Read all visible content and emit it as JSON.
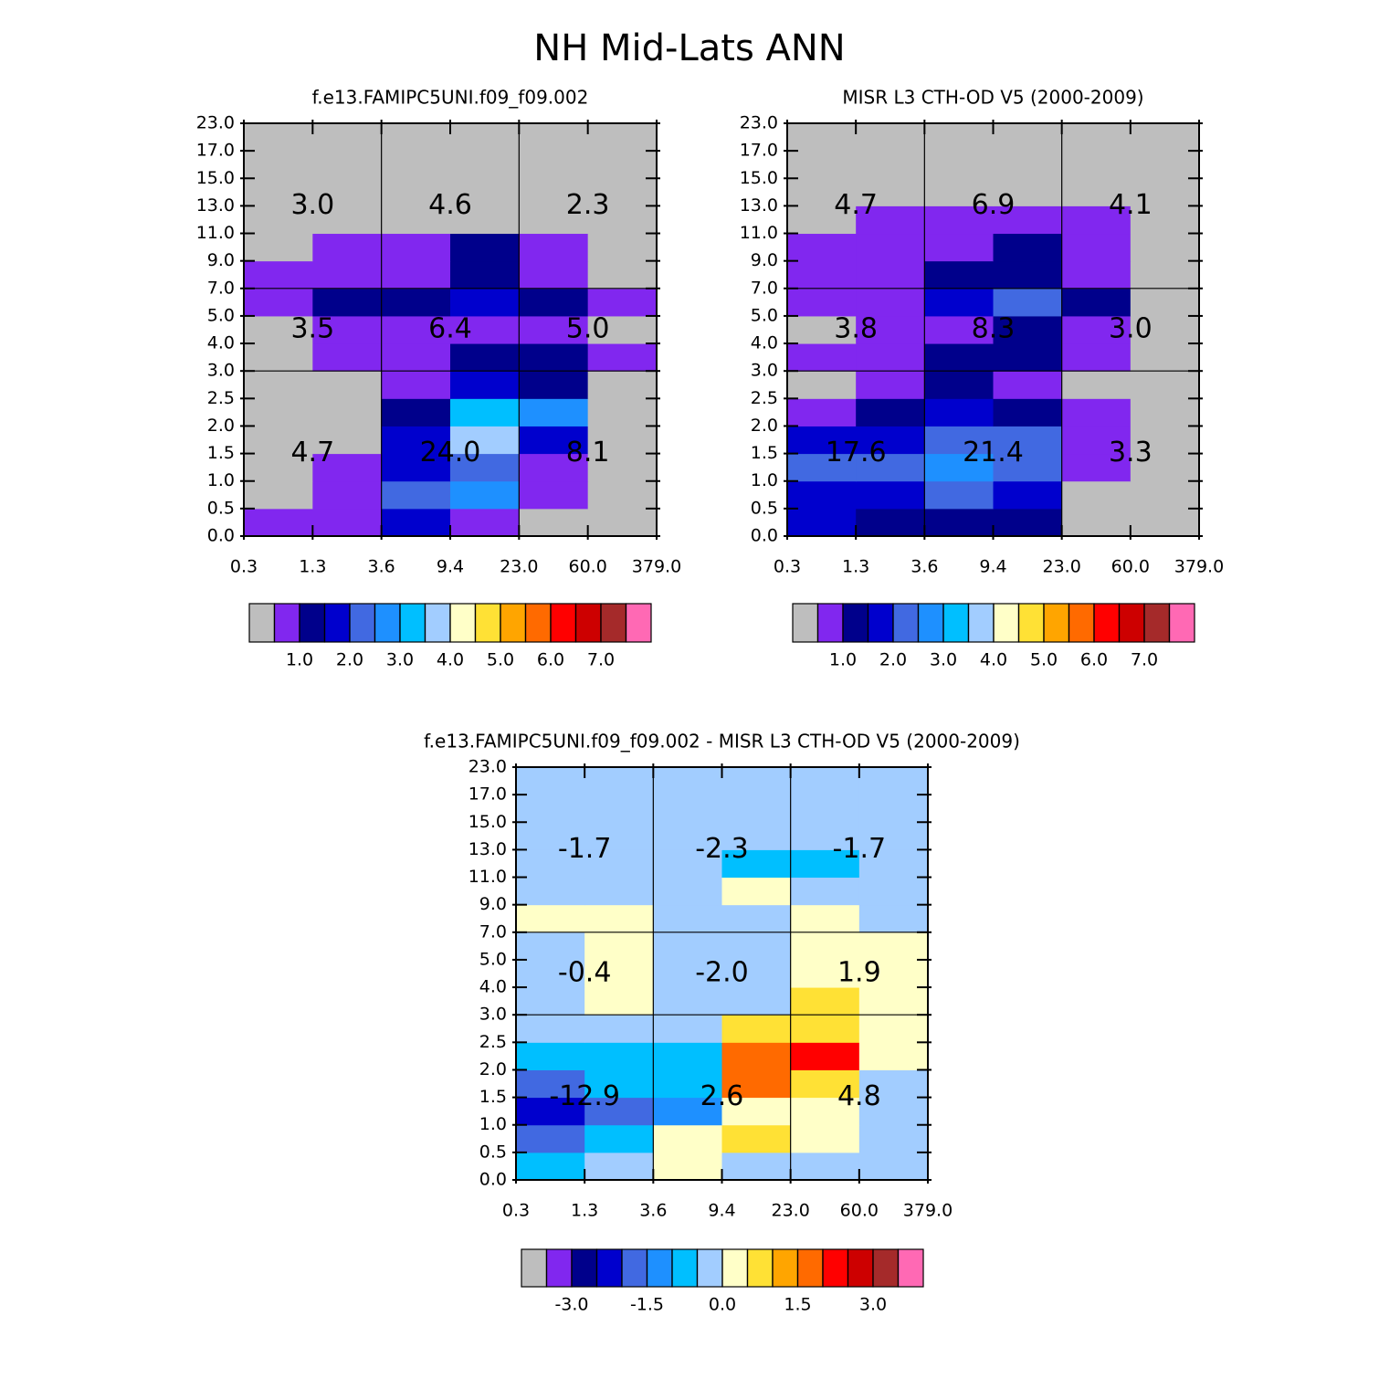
{
  "title": "NH Mid-Lats ANN",
  "chart_data": [
    {
      "type": "heatmap",
      "title": "f.e13.FAMIPC5UNI.f09_f09.002",
      "xticks": [
        0.3,
        1.3,
        3.6,
        9.4,
        {
          "value": 23,
          "label": "23.0"
        },
        {
          "value": 60,
          "label": "60.0"
        },
        {
          "value": 379,
          "label": "379.0"
        }
      ],
      "yticks": [
        {
          "value": 0,
          "label": "0.0"
        },
        0.5,
        {
          "value": 1,
          "label": "1.0"
        },
        1.5,
        {
          "value": 2,
          "label": "2.0"
        },
        2.5,
        {
          "value": 3,
          "label": "3.0"
        },
        {
          "value": 4,
          "label": "4.0"
        },
        {
          "value": 5,
          "label": "5.0"
        },
        {
          "value": 7,
          "label": "7.0"
        },
        {
          "value": 9,
          "label": "9.0"
        },
        {
          "value": 11,
          "label": "11.0"
        },
        {
          "value": 13,
          "label": "13.0"
        },
        {
          "value": 15,
          "label": "15.0"
        },
        {
          "value": 17,
          "label": "17.0"
        },
        {
          "value": 23,
          "label": "23.0"
        }
      ],
      "values": [
        [
          0.8,
          0.8,
          1.7,
          0.8,
          0.2,
          0.2
        ],
        [
          0.2,
          0.8,
          2.2,
          2.7,
          0.8,
          0.2
        ],
        [
          0.2,
          0.8,
          1.7,
          2.2,
          0.8,
          0.2
        ],
        [
          0.2,
          0.2,
          1.7,
          3.7,
          1.7,
          0.2
        ],
        [
          0.2,
          0.2,
          1.2,
          3.2,
          2.7,
          0.2
        ],
        [
          0.2,
          0.2,
          0.8,
          1.7,
          1.2,
          0.2
        ],
        [
          0.2,
          0.8,
          0.8,
          1.2,
          1.2,
          0.8
        ],
        [
          0.2,
          0.8,
          0.8,
          0.8,
          0.8,
          0.2
        ],
        [
          0.8,
          1.2,
          1.2,
          1.7,
          1.2,
          0.8
        ],
        [
          0.8,
          0.8,
          0.8,
          1.2,
          0.8,
          0.2
        ],
        [
          0.2,
          0.8,
          0.8,
          1.2,
          0.8,
          0.2
        ],
        [
          0.2,
          0.2,
          0.2,
          0.2,
          0.2,
          0.2
        ],
        [
          0.2,
          0.2,
          0.2,
          0.2,
          0.2,
          0.2
        ],
        [
          0.2,
          0.2,
          0.2,
          0.2,
          0.2,
          0.2
        ],
        [
          0.2,
          0.2,
          0.2,
          0.2,
          0.2,
          0.2
        ]
      ],
      "block_values": [
        [
          4.7,
          24.0,
          8.1
        ],
        [
          3.5,
          6.4,
          5.0
        ],
        [
          3.0,
          4.6,
          2.3
        ]
      ],
      "block_labels": [
        [
          "4.7",
          "24.0",
          "8.1"
        ],
        [
          "3.5",
          "6.4",
          "5.0"
        ],
        [
          "3.0",
          "4.6",
          "2.3"
        ]
      ],
      "colorbar": {
        "levels": [
          0.5,
          {
            "value": 1,
            "label": "1.0"
          },
          1.5,
          {
            "value": 2,
            "label": "2.0"
          },
          2.5,
          {
            "value": 3,
            "label": "3.0"
          },
          3.5,
          {
            "value": 4,
            "label": "4.0"
          },
          4.5,
          {
            "value": 5,
            "label": "5.0"
          },
          5.5,
          {
            "value": 6,
            "label": "6.0"
          },
          6.5,
          {
            "value": 7,
            "label": "7.0"
          },
          7.5
        ],
        "colors": [
          "#bebebe",
          "#8127ef",
          "#00008b",
          "#0000cd",
          "#4169e1",
          "#1e90ff",
          "#00bfff",
          "#a2cdff",
          "#ffffc8",
          "#ffe135",
          "#ffa500",
          "#ff6a00",
          "#ff0000",
          "#cd0000",
          "#a52a2a",
          "#ff69b4"
        ]
      }
    },
    {
      "type": "heatmap",
      "title": "MISR L3 CTH-OD V5 (2000-2009)",
      "xticks": [
        0.3,
        1.3,
        3.6,
        9.4,
        {
          "value": 23,
          "label": "23.0"
        },
        {
          "value": 60,
          "label": "60.0"
        },
        {
          "value": 379,
          "label": "379.0"
        }
      ],
      "yticks": [
        {
          "value": 0,
          "label": "0.0"
        },
        0.5,
        {
          "value": 1,
          "label": "1.0"
        },
        1.5,
        {
          "value": 2,
          "label": "2.0"
        },
        2.5,
        {
          "value": 3,
          "label": "3.0"
        },
        {
          "value": 4,
          "label": "4.0"
        },
        {
          "value": 5,
          "label": "5.0"
        },
        {
          "value": 7,
          "label": "7.0"
        },
        {
          "value": 9,
          "label": "9.0"
        },
        {
          "value": 11,
          "label": "11.0"
        },
        {
          "value": 13,
          "label": "13.0"
        },
        {
          "value": 15,
          "label": "15.0"
        },
        {
          "value": 17,
          "label": "17.0"
        },
        {
          "value": 23,
          "label": "23.0"
        }
      ],
      "values": [
        [
          1.7,
          1.2,
          1.2,
          1.2,
          0.2,
          0.2
        ],
        [
          1.7,
          1.7,
          2.2,
          1.7,
          0.2,
          0.2
        ],
        [
          2.2,
          2.2,
          2.7,
          2.2,
          0.8,
          0.2
        ],
        [
          1.7,
          1.7,
          2.2,
          2.2,
          0.8,
          0.2
        ],
        [
          0.8,
          1.2,
          1.7,
          1.2,
          0.8,
          0.2
        ],
        [
          0.2,
          0.8,
          1.2,
          0.8,
          0.2,
          0.2
        ],
        [
          0.8,
          0.8,
          1.2,
          1.2,
          0.8,
          0.2
        ],
        [
          0.2,
          0.8,
          0.8,
          1.2,
          0.8,
          0.2
        ],
        [
          0.8,
          0.8,
          1.7,
          2.2,
          1.2,
          0.2
        ],
        [
          0.8,
          0.8,
          1.2,
          1.2,
          0.8,
          0.2
        ],
        [
          0.8,
          0.8,
          0.8,
          1.2,
          0.8,
          0.2
        ],
        [
          0.2,
          0.8,
          0.8,
          0.8,
          0.8,
          0.2
        ],
        [
          0.2,
          0.2,
          0.2,
          0.2,
          0.2,
          0.2
        ],
        [
          0.2,
          0.2,
          0.2,
          0.2,
          0.2,
          0.2
        ],
        [
          0.2,
          0.2,
          0.2,
          0.2,
          0.2,
          0.2
        ]
      ],
      "block_values": [
        [
          17.6,
          21.4,
          3.3
        ],
        [
          3.8,
          8.3,
          3.0
        ],
        [
          4.7,
          6.9,
          4.1
        ]
      ],
      "block_labels": [
        [
          "17.6",
          "21.4",
          "3.3"
        ],
        [
          "3.8",
          "8.3",
          "3.0"
        ],
        [
          "4.7",
          "6.9",
          "4.1"
        ]
      ],
      "colorbar": {
        "levels": [
          0.5,
          {
            "value": 1,
            "label": "1.0"
          },
          1.5,
          {
            "value": 2,
            "label": "2.0"
          },
          2.5,
          {
            "value": 3,
            "label": "3.0"
          },
          3.5,
          {
            "value": 4,
            "label": "4.0"
          },
          4.5,
          {
            "value": 5,
            "label": "5.0"
          },
          5.5,
          {
            "value": 6,
            "label": "6.0"
          },
          6.5,
          {
            "value": 7,
            "label": "7.0"
          },
          7.5
        ],
        "colors": [
          "#bebebe",
          "#8127ef",
          "#00008b",
          "#0000cd",
          "#4169e1",
          "#1e90ff",
          "#00bfff",
          "#a2cdff",
          "#ffffc8",
          "#ffe135",
          "#ffa500",
          "#ff6a00",
          "#ff0000",
          "#cd0000",
          "#a52a2a",
          "#ff69b4"
        ]
      }
    },
    {
      "type": "heatmap",
      "title": "f.e13.FAMIPC5UNI.f09_f09.002 - MISR L3 CTH-OD V5 (2000-2009)",
      "xticks": [
        0.3,
        1.3,
        3.6,
        9.4,
        {
          "value": 23,
          "label": "23.0"
        },
        {
          "value": 60,
          "label": "60.0"
        },
        {
          "value": 379,
          "label": "379.0"
        }
      ],
      "yticks": [
        {
          "value": 0,
          "label": "0.0"
        },
        0.5,
        {
          "value": 1,
          "label": "1.0"
        },
        1.5,
        {
          "value": 2,
          "label": "2.0"
        },
        2.5,
        {
          "value": 3,
          "label": "3.0"
        },
        {
          "value": 4,
          "label": "4.0"
        },
        {
          "value": 5,
          "label": "5.0"
        },
        {
          "value": 7,
          "label": "7.0"
        },
        {
          "value": 9,
          "label": "9.0"
        },
        {
          "value": 11,
          "label": "11.0"
        },
        {
          "value": 13,
          "label": "13.0"
        },
        {
          "value": 15,
          "label": "15.0"
        },
        {
          "value": 17,
          "label": "17.0"
        },
        {
          "value": 23,
          "label": "23.0"
        }
      ],
      "values": [
        [
          -0.7,
          -0.2,
          0.2,
          -0.2,
          -0.2,
          -0.2
        ],
        [
          -1.7,
          -0.7,
          0.2,
          0.7,
          0.2,
          -0.2
        ],
        [
          -2.2,
          -1.7,
          -1.2,
          0.2,
          0.2,
          -0.2
        ],
        [
          -1.7,
          -0.7,
          -0.7,
          1.7,
          0.7,
          -0.2
        ],
        [
          -0.7,
          -0.7,
          -0.7,
          1.7,
          2.2,
          0.2
        ],
        [
          -0.2,
          -0.2,
          -0.2,
          0.7,
          0.7,
          0.2
        ],
        [
          -0.2,
          0.2,
          -0.2,
          -0.2,
          0.7,
          0.2
        ],
        [
          -0.2,
          0.2,
          -0.2,
          -0.2,
          0.2,
          0.2
        ],
        [
          -0.2,
          0.2,
          -0.2,
          -0.2,
          0.2,
          0.2
        ],
        [
          0.2,
          0.2,
          -0.2,
          -0.2,
          0.2,
          -0.2
        ],
        [
          -0.2,
          -0.2,
          -0.2,
          0.2,
          -0.2,
          -0.2
        ],
        [
          -0.2,
          -0.2,
          -0.2,
          -0.7,
          -0.7,
          -0.2
        ],
        [
          -0.2,
          -0.2,
          -0.2,
          -0.2,
          -0.2,
          -0.2
        ],
        [
          -0.2,
          -0.2,
          -0.2,
          -0.2,
          -0.2,
          -0.2
        ],
        [
          -0.2,
          -0.2,
          -0.2,
          -0.2,
          -0.2,
          -0.2
        ]
      ],
      "block_values": [
        [
          -12.9,
          2.6,
          4.8
        ],
        [
          -0.4,
          -2.0,
          1.9
        ],
        [
          -1.7,
          -2.3,
          -1.7
        ]
      ],
      "block_labels": [
        [
          "-12.9",
          "2.6",
          "4.8"
        ],
        [
          "-0.4",
          "-2.0",
          "1.9"
        ],
        [
          "-1.7",
          "-2.3",
          "-1.7"
        ]
      ],
      "colorbar": {
        "levels": [
          -3.5,
          {
            "value": -3,
            "label": "-3.0"
          },
          -2.5,
          -2,
          {
            "value": -1.5,
            "label": "-1.5"
          },
          -1,
          -0.5,
          {
            "value": 0,
            "label": "0.0"
          },
          0.5,
          1,
          {
            "value": 1.5,
            "label": "1.5"
          },
          2,
          2.5,
          {
            "value": 3,
            "label": "3.0"
          },
          3.5
        ],
        "colors": [
          "#bebebe",
          "#8127ef",
          "#00008b",
          "#0000cd",
          "#4169e1",
          "#1e90ff",
          "#00bfff",
          "#a2cdff",
          "#ffffc8",
          "#ffe135",
          "#ffa500",
          "#ff6a00",
          "#ff0000",
          "#cd0000",
          "#a52a2a",
          "#ff69b4"
        ]
      }
    }
  ]
}
